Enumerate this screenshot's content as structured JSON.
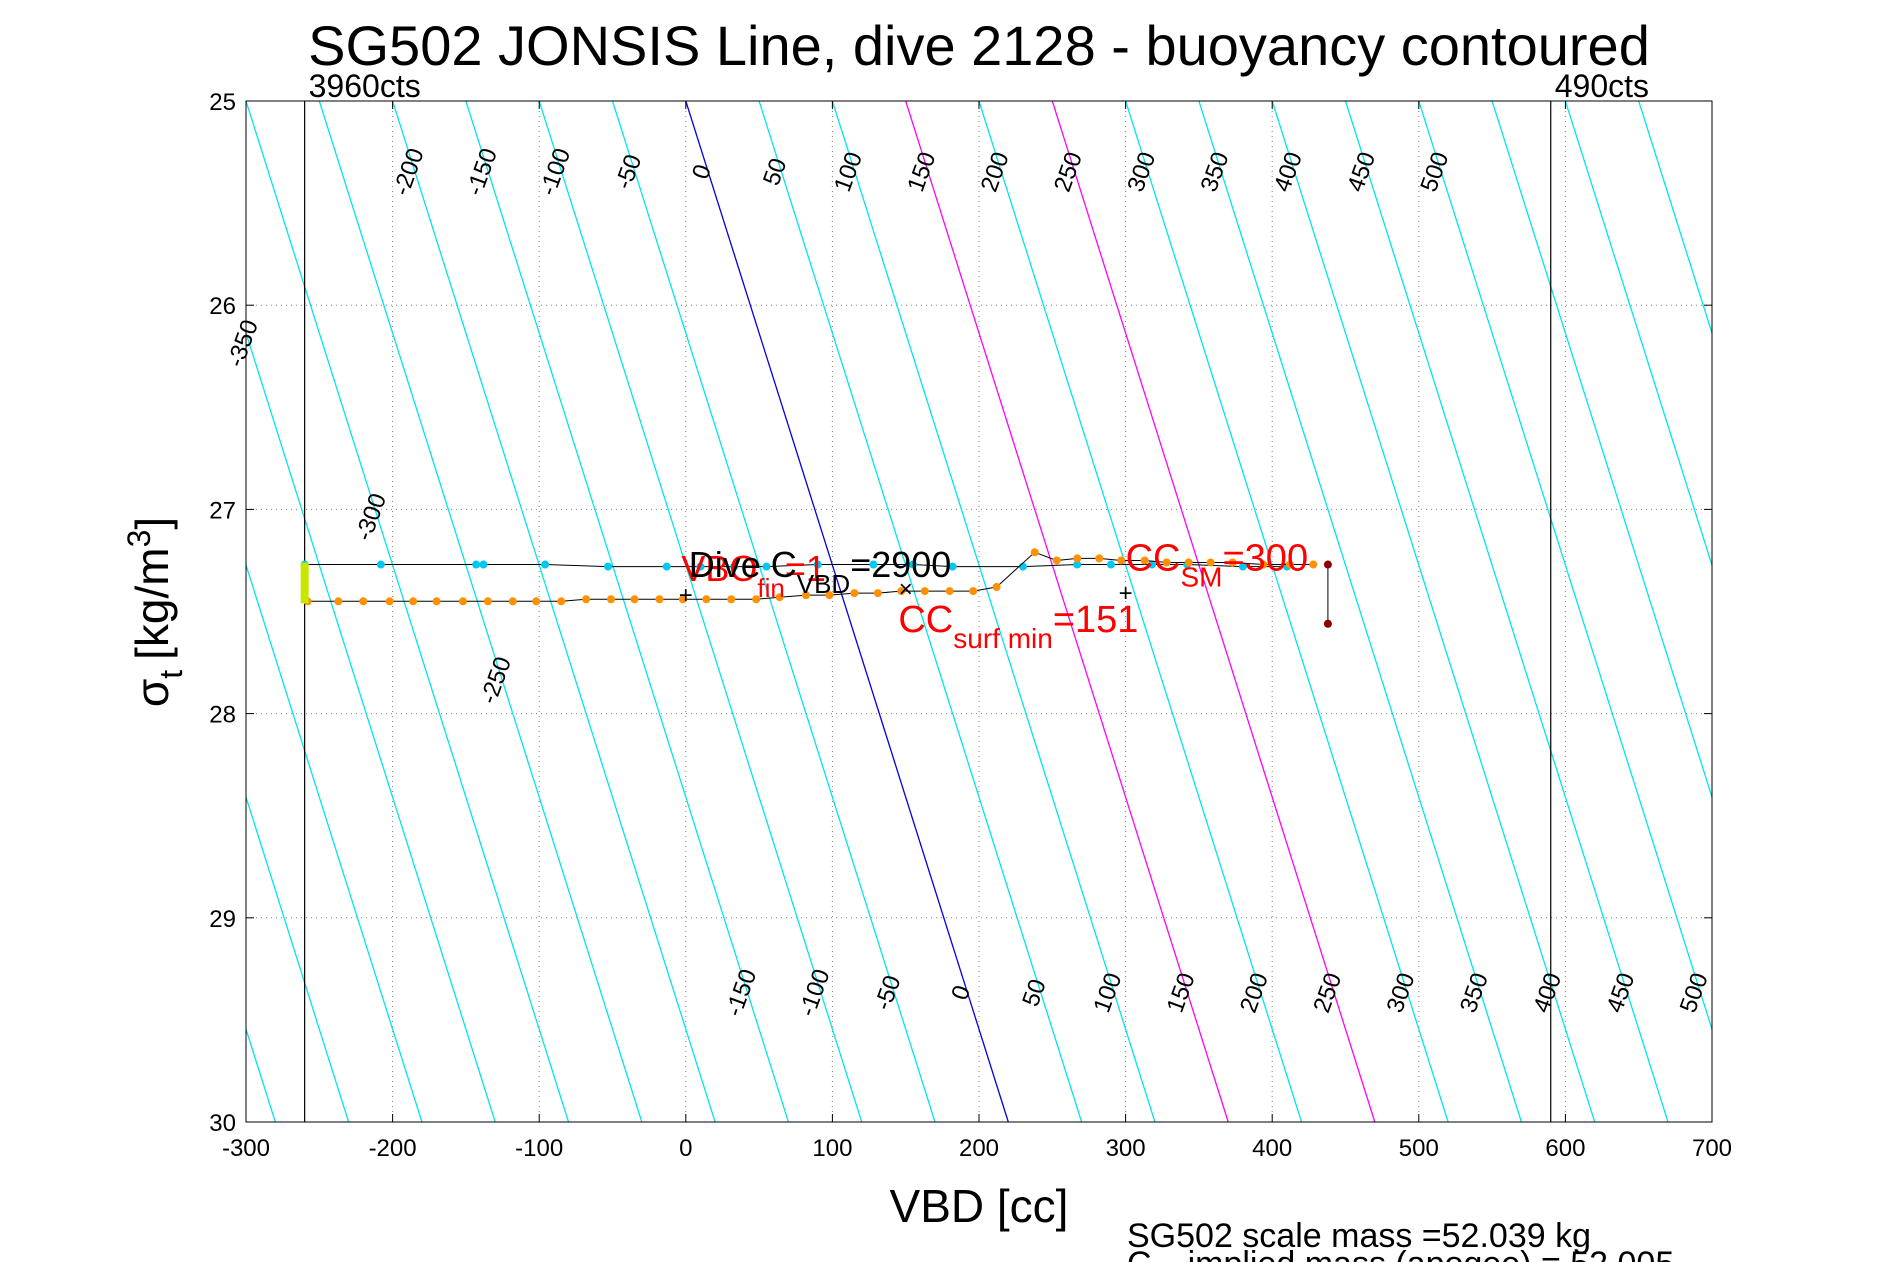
{
  "chart_data": {
    "type": "scatter",
    "title": "SG502 JONSIS Line, dive 2128 - buoyancy contoured",
    "xlabel": "VBD [cc]",
    "ylabel": "σ",
    "ylabel_sub": "t",
    "ylabel_unit": "[kg/m",
    "ylabel_unit_sup": "3",
    "ylabel_unit_close": "]",
    "xlim": [
      -300,
      700
    ],
    "ylim": [
      25,
      30
    ],
    "y_reversed": true,
    "grid": "dotted",
    "x_ticks": [
      -300,
      -200,
      -100,
      0,
      100,
      200,
      300,
      400,
      500,
      600,
      700
    ],
    "y_ticks": [
      25,
      26,
      27,
      28,
      29,
      30
    ],
    "x_tick_labels": [
      "-300",
      "-200",
      "-100",
      "0",
      "100",
      "200",
      "300",
      "400",
      "500",
      "600",
      "700"
    ],
    "y_tick_labels": [
      "25",
      "26",
      "27",
      "28",
      "29",
      "30"
    ],
    "vbd_limits": [
      {
        "vbd": -260,
        "label": "3960cts"
      },
      {
        "vbd": 590,
        "label": "490cts"
      }
    ],
    "buoyancy_contour_slope_cc_per_sigma": 44,
    "buoyancy_contours": [
      -550,
      -500,
      -450,
      -400,
      -350,
      -300,
      -250,
      -200,
      -150,
      -100,
      -50,
      0,
      50,
      100,
      150,
      200,
      250,
      300,
      350,
      400,
      450,
      500,
      550,
      600,
      650,
      700,
      750,
      800,
      850,
      900,
      950,
      1000,
      1050,
      1100,
      1150,
      1200
    ],
    "contour_colors": {
      "zero": "#0000e0",
      "highlight": "#ff00ff",
      "other": "#00e5ee"
    },
    "highlight_contours": [
      150,
      250
    ],
    "contour_labels_top": [
      {
        "value": -200,
        "text": "-200"
      },
      {
        "value": -150,
        "text": "-150"
      },
      {
        "value": -100,
        "text": "-100"
      },
      {
        "value": -50,
        "text": "-50"
      },
      {
        "value": 0,
        "text": "0"
      },
      {
        "value": 50,
        "text": "50"
      },
      {
        "value": 100,
        "text": "100"
      },
      {
        "value": 150,
        "text": "150"
      },
      {
        "value": 200,
        "text": "200"
      },
      {
        "value": 250,
        "text": "250"
      },
      {
        "value": 300,
        "text": "300"
      },
      {
        "value": 350,
        "text": "350"
      },
      {
        "value": 400,
        "text": "400"
      },
      {
        "value": 450,
        "text": "450"
      },
      {
        "value": 500,
        "text": "500"
      }
    ],
    "contour_labels_bottom": [
      {
        "value": -150,
        "text": "-150"
      },
      {
        "value": -100,
        "text": "-100"
      },
      {
        "value": -50,
        "text": "-50"
      },
      {
        "value": 0,
        "text": "0"
      },
      {
        "value": 50,
        "text": "50"
      },
      {
        "value": 100,
        "text": "100"
      },
      {
        "value": 150,
        "text": "150"
      },
      {
        "value": 200,
        "text": "200"
      },
      {
        "value": 250,
        "text": "250"
      },
      {
        "value": 300,
        "text": "300"
      },
      {
        "value": 350,
        "text": "350"
      },
      {
        "value": 400,
        "text": "400"
      },
      {
        "value": 450,
        "text": "450"
      },
      {
        "value": 500,
        "text": "500"
      }
    ],
    "contour_labels_left": [
      {
        "value": -350,
        "sigma": 26.2,
        "text": "-350"
      },
      {
        "value": -300,
        "sigma": 27.05,
        "text": "-300"
      },
      {
        "value": -250,
        "sigma": 27.85,
        "text": "-250"
      }
    ],
    "series": [
      {
        "name": "dive",
        "color": "#00c8f0",
        "points": [
          [
            -260,
            27.27
          ],
          [
            -208,
            27.27
          ],
          [
            -143,
            27.27
          ],
          [
            -138,
            27.27
          ],
          [
            -96,
            27.27
          ],
          [
            -53,
            27.28
          ],
          [
            -13,
            27.28
          ],
          [
            10,
            27.28
          ],
          [
            33,
            27.28
          ],
          [
            55,
            27.28
          ],
          [
            90,
            27.27
          ],
          [
            128,
            27.27
          ],
          [
            155,
            27.27
          ],
          [
            182,
            27.28
          ],
          [
            230,
            27.28
          ],
          [
            267,
            27.27
          ],
          [
            290,
            27.27
          ],
          [
            318,
            27.27
          ],
          [
            342,
            27.27
          ],
          [
            380,
            27.28
          ],
          [
            410,
            27.28
          ]
        ]
      },
      {
        "name": "climb",
        "color": "#ff9000",
        "points": [
          [
            -258,
            27.45
          ],
          [
            -237,
            27.45
          ],
          [
            -220,
            27.45
          ],
          [
            -202,
            27.45
          ],
          [
            -186,
            27.45
          ],
          [
            -170,
            27.45
          ],
          [
            -152,
            27.45
          ],
          [
            -135,
            27.45
          ],
          [
            -118,
            27.45
          ],
          [
            -102,
            27.45
          ],
          [
            -85,
            27.45
          ],
          [
            -68,
            27.44
          ],
          [
            -51,
            27.44
          ],
          [
            -35,
            27.44
          ],
          [
            -18,
            27.44
          ],
          [
            -2,
            27.44
          ],
          [
            14,
            27.44
          ],
          [
            31,
            27.44
          ],
          [
            48,
            27.44
          ],
          [
            64,
            27.43
          ],
          [
            82,
            27.42
          ],
          [
            98,
            27.42
          ],
          [
            115,
            27.41
          ],
          [
            131,
            27.41
          ],
          [
            147,
            27.4
          ],
          [
            163,
            27.4
          ],
          [
            180,
            27.4
          ],
          [
            196,
            27.4
          ],
          [
            212,
            27.38
          ],
          [
            238,
            27.21
          ],
          [
            253,
            27.25
          ],
          [
            267,
            27.24
          ],
          [
            282,
            27.24
          ],
          [
            297,
            27.25
          ],
          [
            313,
            27.25
          ],
          [
            328,
            27.26
          ],
          [
            343,
            27.26
          ],
          [
            358,
            27.26
          ],
          [
            373,
            27.26
          ],
          [
            394,
            27.27
          ],
          [
            412,
            27.27
          ],
          [
            428,
            27.27
          ]
        ]
      },
      {
        "name": "surface",
        "color": "#8b0000",
        "points": [
          [
            438,
            27.27
          ],
          [
            438,
            27.56
          ]
        ]
      }
    ],
    "start_marker": {
      "color": "#c8e600",
      "vbd": -260,
      "sigma_range": [
        27.26,
        27.46
      ]
    },
    "markers": [
      {
        "symbol": "+",
        "vbd": 0,
        "sigma": 27.42,
        "color": "#ff0000"
      },
      {
        "symbol": "×",
        "vbd": 150,
        "sigma": 27.39,
        "color": "#ff0000"
      },
      {
        "symbol": "+",
        "vbd": 300,
        "sigma": 27.41,
        "color": "#ff0000"
      }
    ],
    "annotations": {
      "dive_c_vbd": {
        "prefix": "Dive C",
        "sub": "VBD",
        "suffix": "=2900",
        "vbd": 2,
        "sigma": 27.33
      },
      "vbo": {
        "prefix": "VBO",
        "sub": "fin",
        "suffix": "=1",
        "vbd": -3,
        "sigma": 27.35
      },
      "cc_surf_min": {
        "prefix": "CC",
        "sub": "surf min",
        "suffix": "=151",
        "vbd": 145,
        "sigma": 27.6
      },
      "cc_sm": {
        "prefix": "CC",
        "sub": "SM",
        "suffix": "=300",
        "vbd": 300,
        "sigma": 27.3
      }
    },
    "footer_line1": "SG502 scale mass =52.039 kg",
    "footer_line2_prefix": "C",
    "footer_line2_rest": "implied mass (apogee) = 52.005"
  }
}
